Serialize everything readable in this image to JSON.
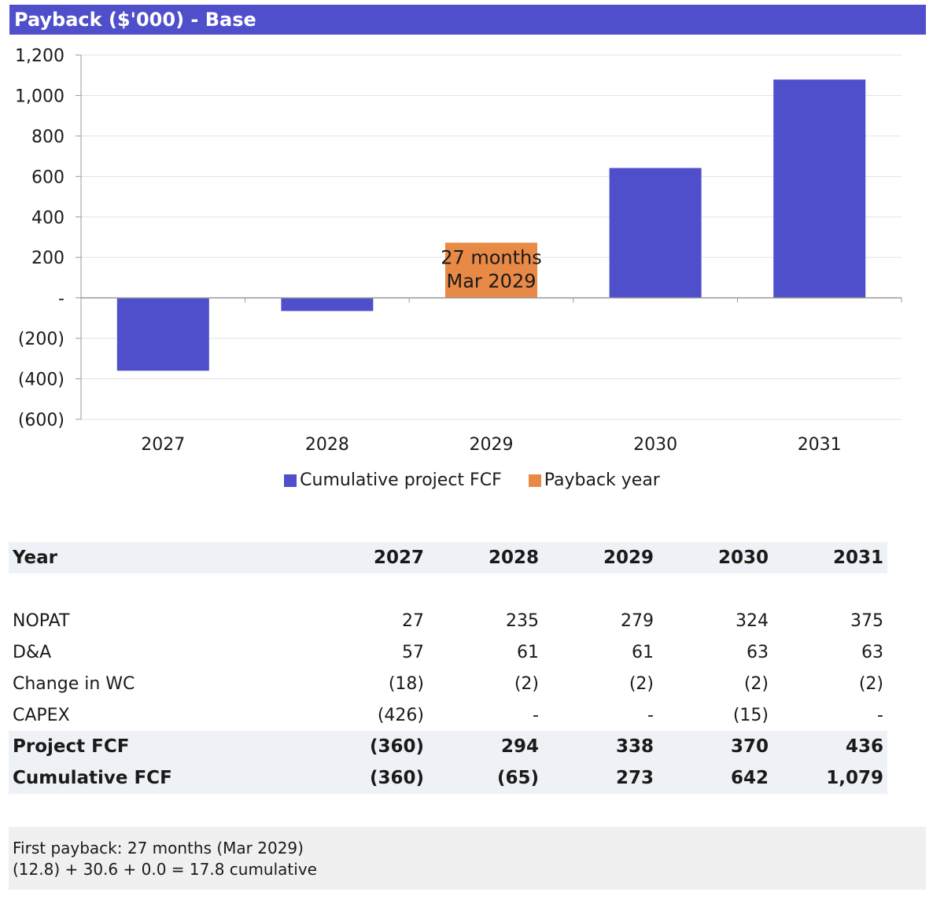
{
  "title": "Payback ($'000) - Base",
  "chart_data": {
    "type": "bar",
    "categories": [
      "2027",
      "2028",
      "2029",
      "2030",
      "2031"
    ],
    "series": [
      {
        "name": "Cumulative project FCF",
        "values": [
          -360,
          -65,
          null,
          642,
          1079
        ],
        "color": "#4f4fcb"
      },
      {
        "name": "Payback year",
        "values": [
          null,
          null,
          273,
          null,
          null
        ],
        "color": "#e98946"
      }
    ],
    "ylim": [
      -600,
      1200
    ],
    "yticks": [
      1200,
      1000,
      800,
      600,
      400,
      200,
      0,
      -200,
      -400,
      -600
    ],
    "ytick_labels": [
      "1,200",
      "1,000",
      "800",
      "600",
      "400",
      "200",
      "-",
      "(200)",
      "(400)",
      "(600)"
    ],
    "annotation": {
      "category": "2029",
      "lines": [
        "27 months",
        "Mar 2029"
      ]
    },
    "grid": true,
    "legend_position": "bottom"
  },
  "legend": [
    {
      "label": "Cumulative project FCF",
      "color": "#4f4fcb"
    },
    {
      "label": "Payback year",
      "color": "#e98946"
    }
  ],
  "table": {
    "header": {
      "label": "Year",
      "values": [
        "2027",
        "2028",
        "2029",
        "2030",
        "2031"
      ]
    },
    "rows": [
      {
        "label": "NOPAT",
        "values": [
          "27",
          "235",
          "279",
          "324",
          "375"
        ]
      },
      {
        "label": "D&A",
        "values": [
          "57",
          "61",
          "61",
          "63",
          "63"
        ]
      },
      {
        "label": "Change in WC",
        "values": [
          "(18)",
          "(2)",
          "(2)",
          "(2)",
          "(2)"
        ]
      },
      {
        "label": "CAPEX",
        "values": [
          "(426)",
          "-",
          "-",
          "(15)",
          "-"
        ]
      }
    ],
    "totals": [
      {
        "label": "Project FCF",
        "values": [
          "(360)",
          "294",
          "338",
          "370",
          "436"
        ]
      },
      {
        "label": "Cumulative FCF",
        "values": [
          "(360)",
          "(65)",
          "273",
          "642",
          "1,079"
        ]
      }
    ]
  },
  "note": {
    "line1": "First payback: 27 months (Mar 2029)",
    "line2": "(12.8) + 30.6 + 0.0 = 17.8 cumulative"
  }
}
